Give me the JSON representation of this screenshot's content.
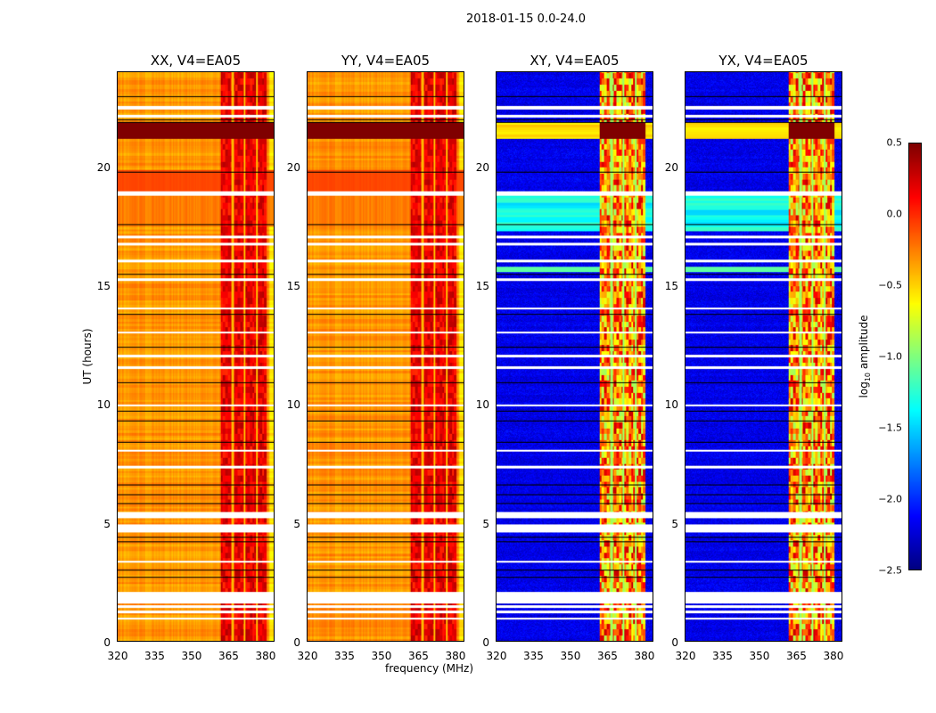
{
  "title": "2018-01-15 0.0-24.0",
  "xlabel": "frequency (MHz)",
  "ylabel": "UT (hours)",
  "colorbar": {
    "label_prefix": "log",
    "label_sub": "10",
    "label_suffix": " amplitude",
    "ticks": [
      "0.5",
      "0.0",
      "−0.5",
      "−1.0",
      "−1.5",
      "−2.0",
      "−2.5"
    ],
    "range": [
      -2.5,
      0.5
    ],
    "colormap": "jet"
  },
  "panels": [
    {
      "title": "XX, V4=EA05",
      "kind": "auto"
    },
    {
      "title": "YY, V4=EA05",
      "kind": "auto"
    },
    {
      "title": "XY, V4=EA05",
      "kind": "cross"
    },
    {
      "title": "YX, V4=EA05",
      "kind": "cross"
    }
  ],
  "chart_data": {
    "type": "heatmap",
    "title": "2018-01-15 0.0-24.0",
    "xlabel": "frequency (MHz)",
    "ylabel": "UT (hours)",
    "xlim": [
      320,
      384
    ],
    "ylim": [
      0,
      24
    ],
    "xticks": [
      "320",
      "335",
      "350",
      "365",
      "380"
    ],
    "xtick_values": [
      320,
      335,
      350,
      365,
      380
    ],
    "yticks": [
      "0",
      "5",
      "10",
      "15",
      "20"
    ],
    "ytick_values": [
      0,
      5,
      10,
      15,
      20
    ],
    "rfi_band_mhz": [
      362,
      381
    ],
    "missing_hours": [
      [
        0.9,
        1.0
      ],
      [
        1.2,
        1.3
      ],
      [
        1.4,
        1.5
      ],
      [
        1.6,
        2.1
      ],
      [
        4.6,
        4.95
      ],
      [
        5.2,
        5.45
      ],
      [
        18.8,
        19.0
      ],
      [
        22.1,
        22.2
      ],
      [
        22.45,
        22.6
      ],
      [
        16.7,
        16.8
      ],
      [
        17.0,
        17.1
      ],
      [
        12.0,
        12.1
      ],
      [
        11.5,
        11.6
      ],
      [
        8.0,
        8.1
      ],
      [
        7.3,
        7.4
      ],
      [
        3.3,
        3.4
      ],
      [
        15.2,
        15.3
      ],
      [
        14.0,
        14.1
      ],
      [
        9.9,
        10.0
      ],
      [
        13.0,
        13.05
      ],
      [
        16.0,
        16.1
      ]
    ],
    "flag_lines_hours": [
      2.7,
      3.0,
      4.2,
      4.4,
      5.8,
      6.2,
      6.6,
      8.4,
      9.3,
      9.7,
      10.9,
      12.4,
      13.8,
      15.5,
      17.6,
      19.8,
      21.9,
      22.0,
      23.0
    ]
  }
}
